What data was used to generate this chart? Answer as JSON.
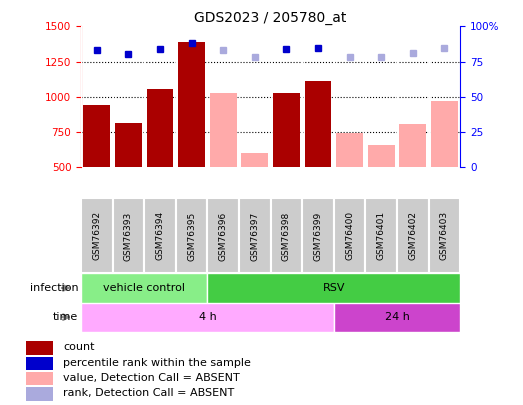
{
  "title": "GDS2023 / 205780_at",
  "samples": [
    "GSM76392",
    "GSM76393",
    "GSM76394",
    "GSM76395",
    "GSM76396",
    "GSM76397",
    "GSM76398",
    "GSM76399",
    "GSM76400",
    "GSM76401",
    "GSM76402",
    "GSM76403"
  ],
  "count_present": [
    940,
    810,
    1055,
    1390,
    null,
    null,
    1030,
    1110,
    null,
    null,
    null,
    null
  ],
  "count_absent": [
    null,
    null,
    null,
    null,
    1030,
    600,
    null,
    null,
    745,
    655,
    805,
    970
  ],
  "rank_present": [
    1330,
    1305,
    1340,
    1380,
    null,
    null,
    1340,
    1345,
    null,
    null,
    null,
    null
  ],
  "rank_absent": [
    null,
    null,
    null,
    null,
    1330,
    1280,
    null,
    null,
    1285,
    1285,
    1310,
    1345
  ],
  "ylim_left": [
    500,
    1500
  ],
  "ylim_right": [
    0,
    100
  ],
  "y_ticks_left": [
    500,
    750,
    1000,
    1250,
    1500
  ],
  "y_ticks_right": [
    0,
    25,
    50,
    75,
    100
  ],
  "infection_labels": [
    {
      "label": "vehicle control",
      "start": 0,
      "end": 4,
      "color": "#88ee88"
    },
    {
      "label": "RSV",
      "start": 4,
      "end": 12,
      "color": "#44cc44"
    }
  ],
  "time_labels": [
    {
      "label": "4 h",
      "start": 0,
      "end": 8,
      "color": "#ffaaff"
    },
    {
      "label": "24 h",
      "start": 8,
      "end": 12,
      "color": "#cc44cc"
    }
  ],
  "bar_color_present": "#aa0000",
  "bar_color_absent": "#ffaaaa",
  "dot_color_present": "#0000cc",
  "dot_color_absent": "#aaaadd",
  "sample_bg_color": "#cccccc",
  "legend_items": [
    {
      "color": "#aa0000",
      "label": "count"
    },
    {
      "color": "#0000cc",
      "label": "percentile rank within the sample"
    },
    {
      "color": "#ffaaaa",
      "label": "value, Detection Call = ABSENT"
    },
    {
      "color": "#aaaadd",
      "label": "rank, Detection Call = ABSENT"
    }
  ]
}
